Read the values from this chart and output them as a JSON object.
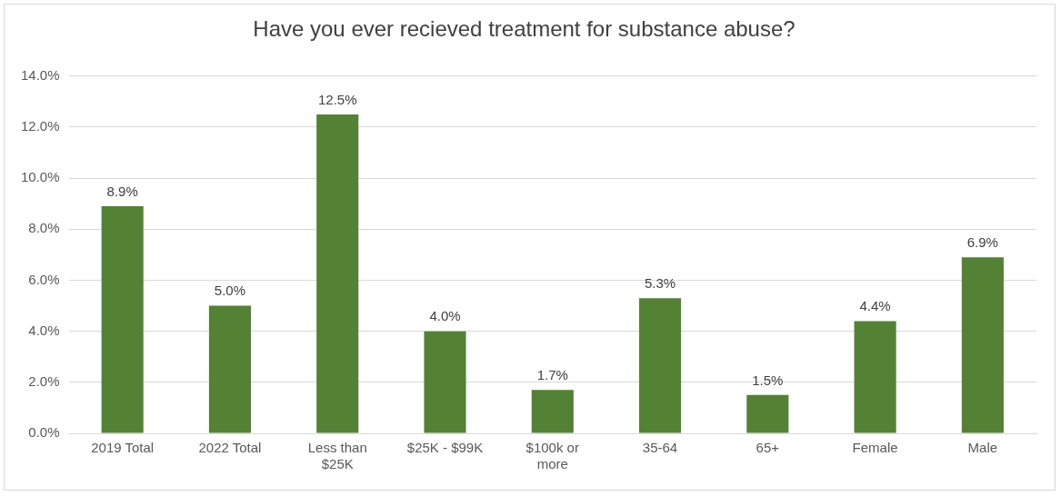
{
  "chart_data": {
    "type": "bar",
    "title": "Have you ever recieved treatment for substance abuse?",
    "categories": [
      "2019 Total",
      "2022 Total",
      "Less than $25K",
      "$25K - $99K",
      "$100k or more",
      "35-64",
      "65+",
      "Female",
      "Male"
    ],
    "values": [
      8.9,
      5.0,
      12.5,
      4.0,
      1.7,
      5.3,
      1.5,
      4.4,
      6.9
    ],
    "value_labels": [
      "8.9%",
      "5.0%",
      "12.5%",
      "4.0%",
      "1.7%",
      "5.3%",
      "1.5%",
      "4.4%",
      "6.9%"
    ],
    "color": "#548235",
    "ylim": [
      0,
      14
    ],
    "yticks": [
      {
        "value": 0,
        "label": "0.0%"
      },
      {
        "value": 2,
        "label": "2.0%"
      },
      {
        "value": 4,
        "label": "4.0%"
      },
      {
        "value": 6,
        "label": "6.0%"
      },
      {
        "value": 8,
        "label": "8.0%"
      },
      {
        "value": 10,
        "label": "10.0%"
      },
      {
        "value": 12,
        "label": "12.0%"
      },
      {
        "value": 14,
        "label": "14.0%"
      }
    ],
    "grid": "y",
    "legend": false
  }
}
